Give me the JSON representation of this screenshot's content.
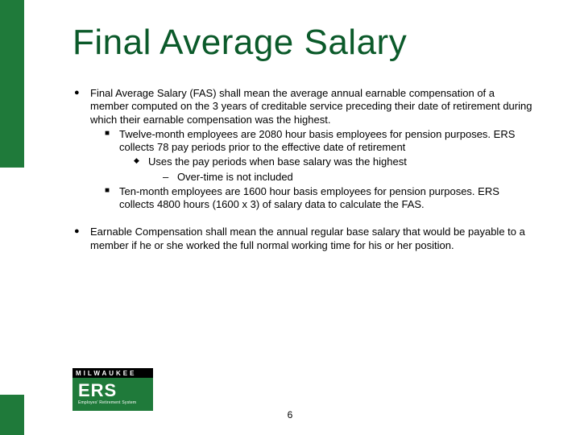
{
  "accent_color": "#1f7a3a",
  "title_color": "#0b5a2a",
  "title": "Final Average Salary",
  "bullets": [
    {
      "text": "Final Average Salary (FAS) shall mean the average annual earnable compensation of a member computed on the 3 years of creditable service preceding their date of retirement during which their earnable compensation was the highest.",
      "children": [
        {
          "text": "Twelve-month employees are 2080 hour basis employees for pension purposes. ERS collects 78 pay periods prior to the effective date of retirement",
          "children": [
            {
              "text": "Uses the pay periods when base salary was the highest",
              "children": [
                {
                  "text": "Over-time is not included"
                }
              ]
            }
          ]
        },
        {
          "text": "Ten-month employees are 1600 hour basis employees for pension purposes. ERS collects 4800 hours (1600 x 3) of salary data to calculate the FAS."
        }
      ]
    },
    {
      "text": "Earnable Compensation shall mean the annual regular base salary that would be payable to a member if he or she worked the full normal working time for his or her position."
    }
  ],
  "logo": {
    "top": "MILWAUKEE",
    "main": "ERS",
    "sub": "Employes' Retirement System"
  },
  "page_number": "6"
}
